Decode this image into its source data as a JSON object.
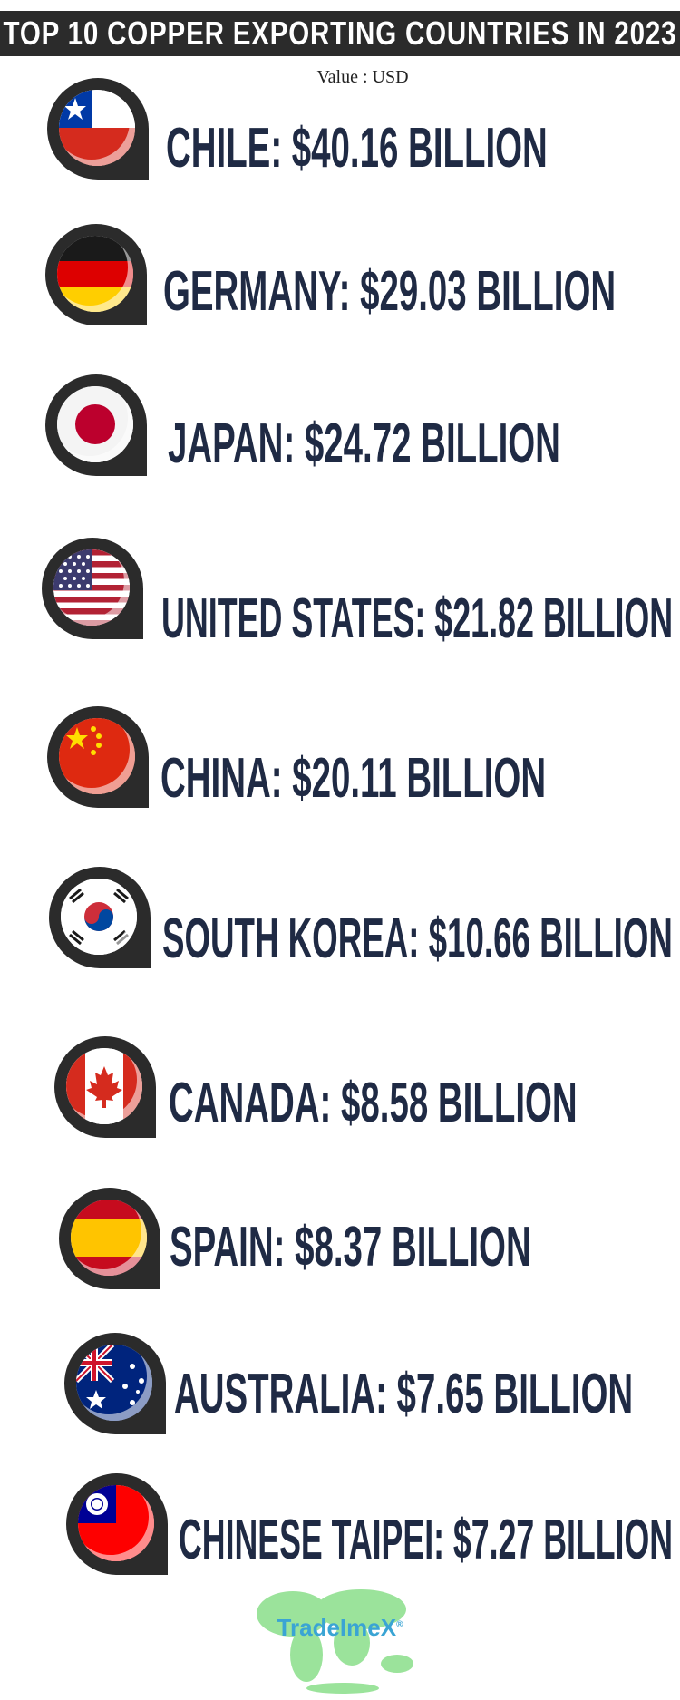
{
  "header": {
    "title": "TOP 10 COPPER EXPORTING COUNTRIES IN 2023",
    "subtitle": "Value : USD"
  },
  "chart_data": {
    "type": "table",
    "title": "TOP 10 COPPER EXPORTING COUNTRIES IN 2023",
    "subtitle": "Value : USD",
    "categories": [
      "CHILE",
      "GERMANY",
      "JAPAN",
      "UNITED STATES",
      "CHINA",
      "SOUTH KOREA",
      "CANADA",
      "SPAIN",
      "AUSTRALIA",
      "CHINESE TAIPEI"
    ],
    "values": [
      40.16,
      29.03,
      24.72,
      21.82,
      20.11,
      10.66,
      8.58,
      8.37,
      7.65,
      7.27
    ],
    "unit": "BILLION"
  },
  "rows": [
    {
      "label": "CHILE: $40.16 BILLION",
      "flag": "chile-flag-icon"
    },
    {
      "label": "GERMANY: $29.03 BILLION",
      "flag": "germany-flag-icon"
    },
    {
      "label": "JAPAN: $24.72 BILLION",
      "flag": "japan-flag-icon"
    },
    {
      "label": "UNITED STATES: $21.82 BILLION",
      "flag": "united-states-flag-icon"
    },
    {
      "label": "CHINA: $20.11 BILLION",
      "flag": "china-flag-icon"
    },
    {
      "label": "SOUTH KOREA: $10.66 BILLION",
      "flag": "south-korea-flag-icon"
    },
    {
      "label": "CANADA: $8.58 BILLION",
      "flag": "canada-flag-icon"
    },
    {
      "label": "SPAIN: $8.37 BILLION",
      "flag": "spain-flag-icon"
    },
    {
      "label": "AUSTRALIA: $7.65 BILLION",
      "flag": "australia-flag-icon"
    },
    {
      "label": "CHINESE TAIPEI: $7.27 BILLION",
      "flag": "chinese-taipei-flag-icon"
    }
  ],
  "footer": {
    "logo_text": "TradeImeX",
    "logo_mark": "®"
  },
  "colors": {
    "label": "#1f2a44",
    "header_bg": "#2b2b2b",
    "badge": "#2b2b2b",
    "logo": "#3aa4d4",
    "logo_map": "#9be39b"
  }
}
